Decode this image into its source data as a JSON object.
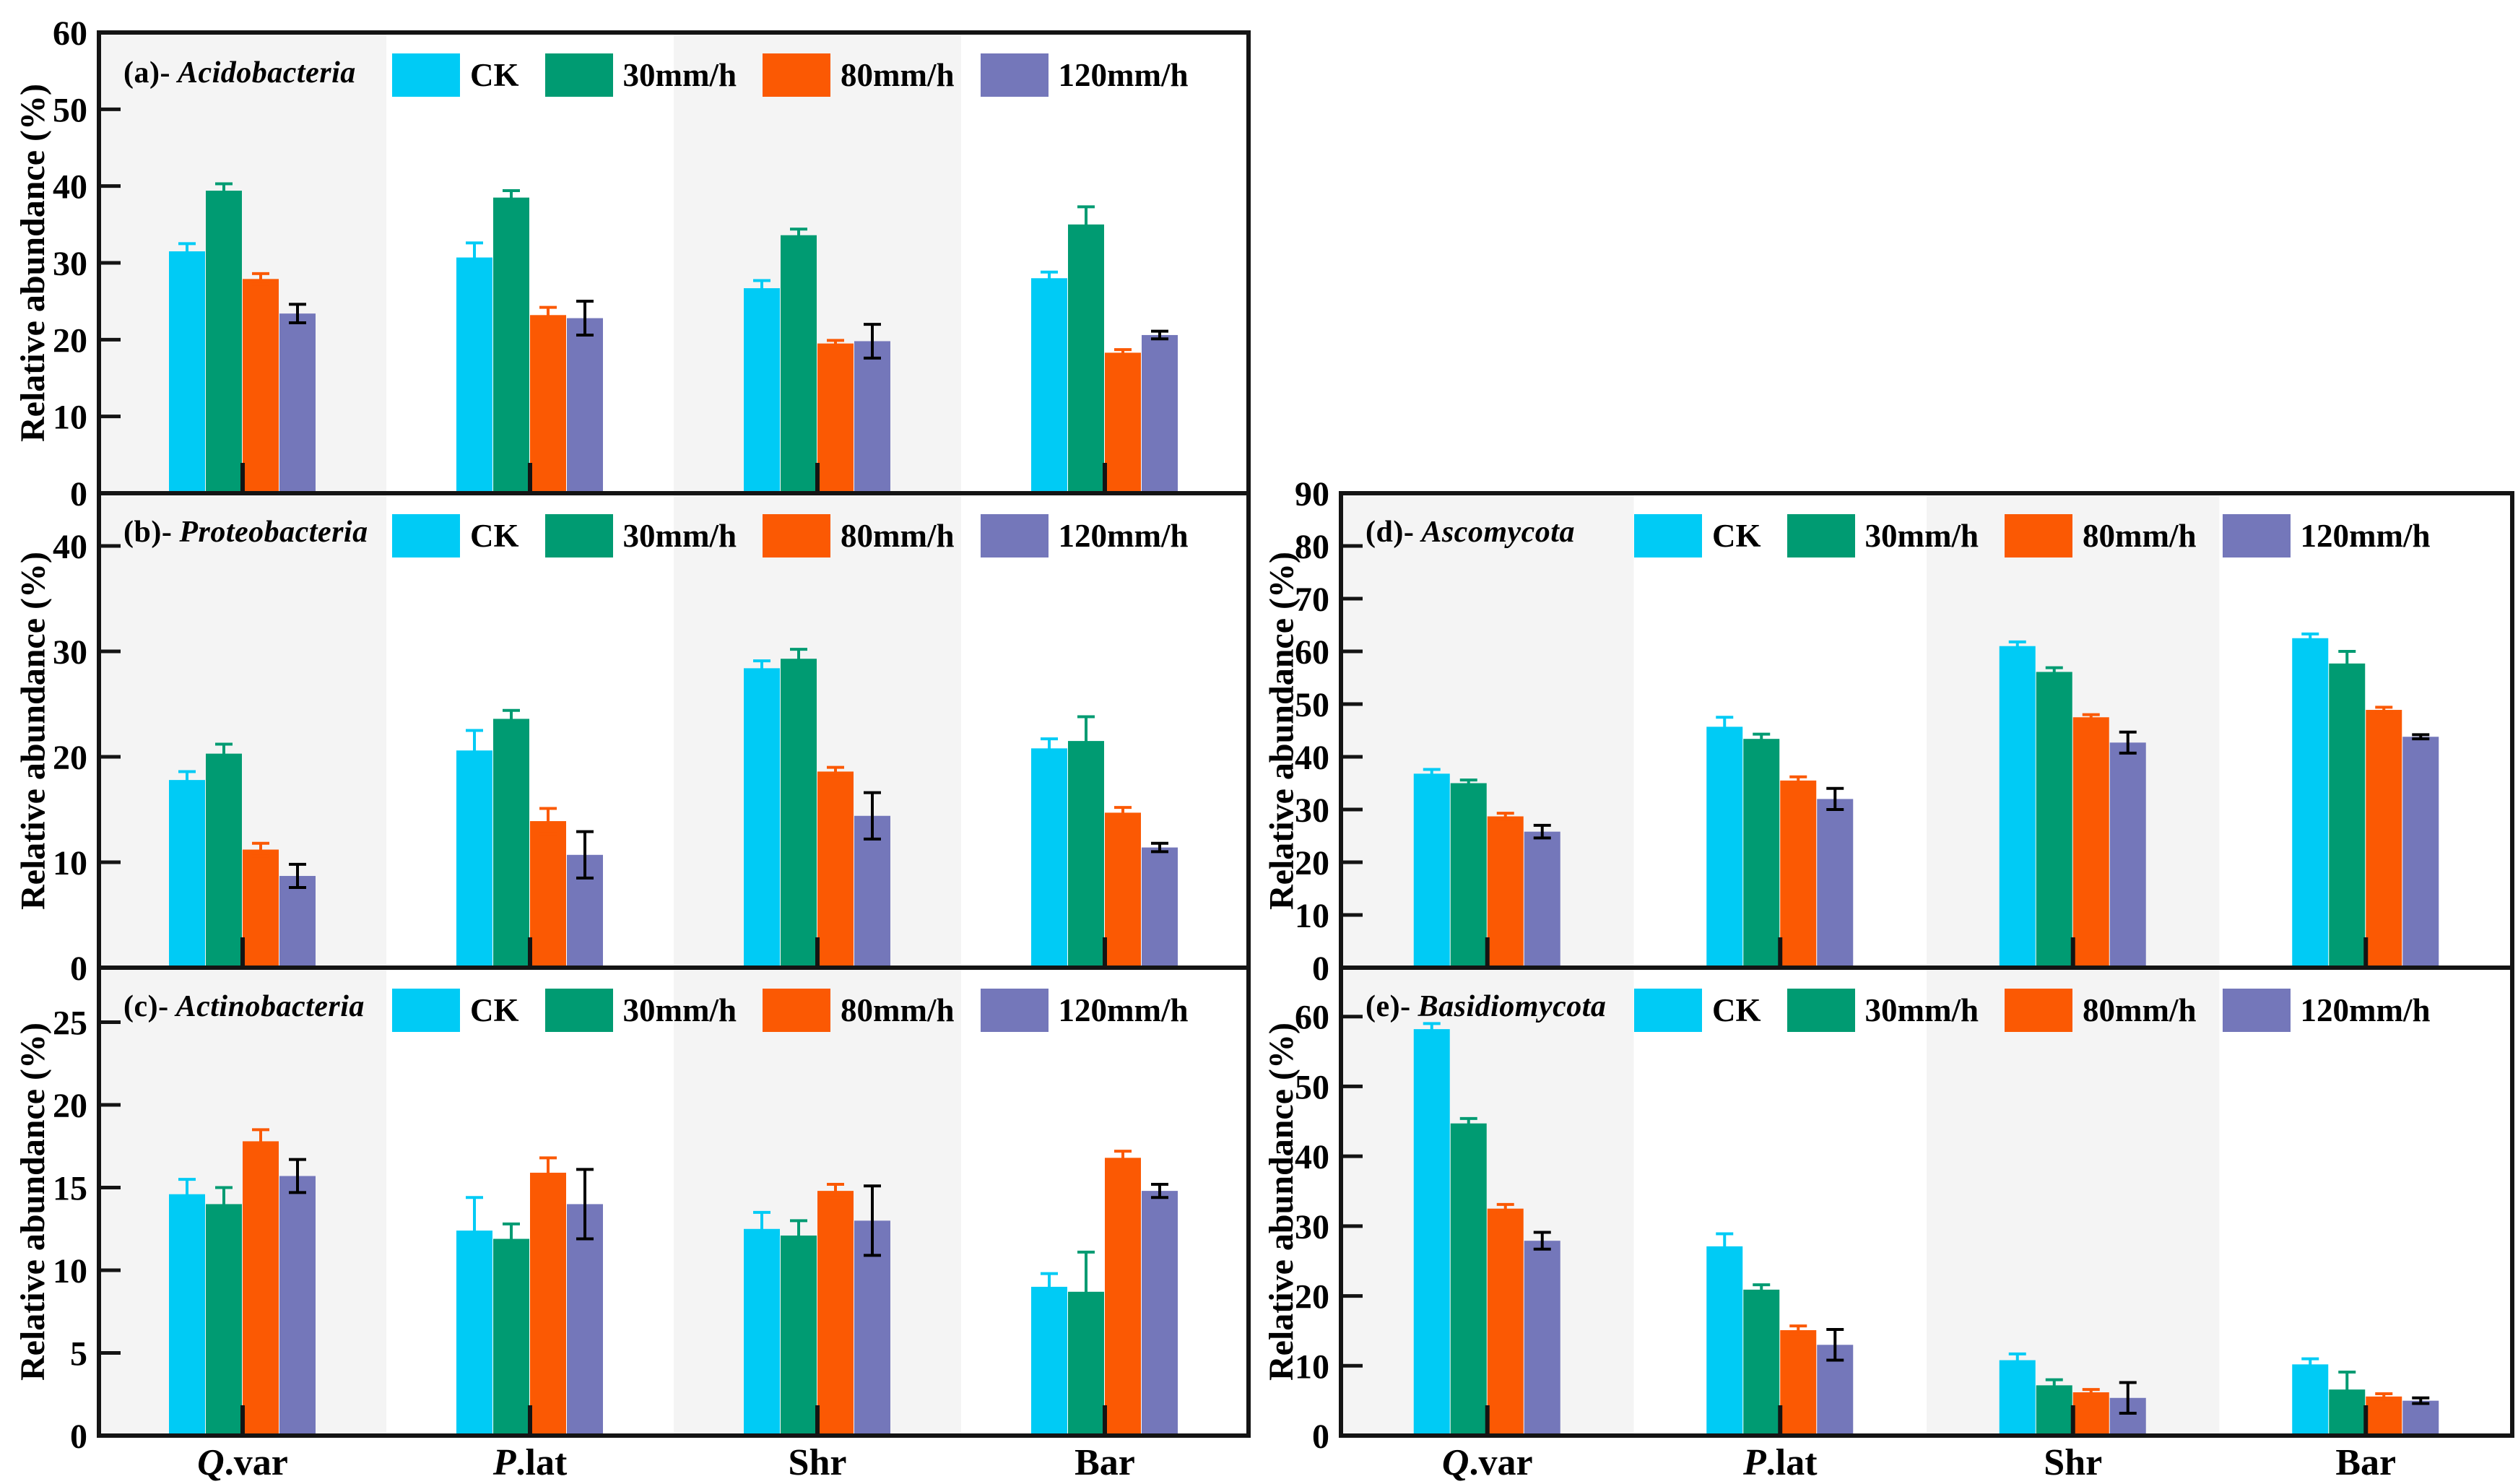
{
  "figure": {
    "ylabel": "Relative abundance (%)",
    "categories": [
      {
        "italic": "Q",
        "text": ".var"
      },
      {
        "italic": "P",
        "text": ".lat"
      },
      {
        "italic": "",
        "text": "Shr"
      },
      {
        "italic": "",
        "text": "Bar"
      }
    ],
    "series": [
      {
        "name": "CK",
        "color": "#00CBF5",
        "error_color": "#00CBF5"
      },
      {
        "name": "30mm/h",
        "color": "#009B72",
        "error_color": "#009B72"
      },
      {
        "name": "80mm/h",
        "color": "#FB5903",
        "error_color": "#FB5903"
      },
      {
        "name": "120mm/h",
        "color": "#7477BA",
        "error_color": "#000000"
      }
    ],
    "band_colors": [
      "#F4F4F4",
      "#FFFFFF"
    ],
    "axis_color": "#141414"
  },
  "chart_data": [
    {
      "type": "bar",
      "panel": "a",
      "panel_label": {
        "prefix": "(a)-",
        "name": "Acidobacteria"
      },
      "ylim": [
        0,
        60
      ],
      "yticks": [
        0,
        10,
        20,
        30,
        40,
        50,
        60
      ],
      "legend_position": "top-inside",
      "grid": false,
      "series": [
        {
          "name": "CK",
          "values": [
            31.5,
            30.7,
            26.7,
            28.0
          ],
          "errors": [
            1.0,
            1.9,
            1.0,
            0.8
          ]
        },
        {
          "name": "30mm/h",
          "values": [
            39.4,
            38.5,
            33.6,
            35.0
          ],
          "errors": [
            0.9,
            0.9,
            0.8,
            2.3
          ]
        },
        {
          "name": "80mm/h",
          "values": [
            27.9,
            23.2,
            19.5,
            18.3
          ],
          "errors": [
            0.7,
            1.0,
            0.4,
            0.4
          ]
        },
        {
          "name": "120mm/h",
          "values": [
            23.4,
            22.8,
            19.8,
            20.6
          ],
          "errors": [
            1.2,
            2.2,
            2.2,
            0.5
          ]
        }
      ]
    },
    {
      "type": "bar",
      "panel": "b",
      "panel_label": {
        "prefix": "(b)-",
        "name": "Proteobacteria"
      },
      "ylim": [
        0,
        45
      ],
      "yticks": [
        0,
        10,
        20,
        30,
        40
      ],
      "legend_position": "top-inside",
      "grid": false,
      "series": [
        {
          "name": "CK",
          "values": [
            17.8,
            20.6,
            28.4,
            20.8
          ],
          "errors": [
            0.8,
            1.9,
            0.7,
            0.9
          ]
        },
        {
          "name": "30mm/h",
          "values": [
            20.3,
            23.6,
            29.3,
            21.5
          ],
          "errors": [
            0.9,
            0.8,
            0.9,
            2.3
          ]
        },
        {
          "name": "80mm/h",
          "values": [
            11.2,
            13.9,
            18.6,
            14.7
          ],
          "errors": [
            0.6,
            1.2,
            0.4,
            0.5
          ]
        },
        {
          "name": "120mm/h",
          "values": [
            8.7,
            10.7,
            14.4,
            11.4
          ],
          "errors": [
            1.1,
            2.2,
            2.2,
            0.4
          ]
        }
      ]
    },
    {
      "type": "bar",
      "panel": "c",
      "panel_label": {
        "prefix": "(c)-",
        "name": "Actinobacteria"
      },
      "ylim": [
        0,
        28.3
      ],
      "yticks": [
        0,
        5,
        10,
        15,
        20,
        25
      ],
      "legend_position": "top-inside",
      "grid": false,
      "series": [
        {
          "name": "CK",
          "values": [
            14.6,
            12.4,
            12.5,
            9.0
          ],
          "errors": [
            0.9,
            2.0,
            1.0,
            0.8
          ]
        },
        {
          "name": "30mm/h",
          "values": [
            14.0,
            11.9,
            12.1,
            8.7
          ],
          "errors": [
            1.0,
            0.9,
            0.9,
            2.4
          ]
        },
        {
          "name": "80mm/h",
          "values": [
            17.8,
            15.9,
            14.8,
            16.8
          ],
          "errors": [
            0.7,
            0.9,
            0.4,
            0.4
          ]
        },
        {
          "name": "120mm/h",
          "values": [
            15.7,
            14.0,
            13.0,
            14.8
          ],
          "errors": [
            1.0,
            2.1,
            2.1,
            0.4
          ]
        }
      ]
    },
    {
      "type": "bar",
      "panel": "d",
      "panel_label": {
        "prefix": "(d)-",
        "name": "Ascomycota"
      },
      "ylim": [
        0,
        90
      ],
      "yticks": [
        0,
        10,
        20,
        30,
        40,
        50,
        60,
        70,
        80,
        90
      ],
      "legend_position": "top-inside",
      "grid": false,
      "series": [
        {
          "name": "CK",
          "values": [
            36.8,
            45.7,
            61.0,
            62.5
          ],
          "errors": [
            0.8,
            1.8,
            0.8,
            0.8
          ]
        },
        {
          "name": "30mm/h",
          "values": [
            35.0,
            43.4,
            56.1,
            57.7
          ],
          "errors": [
            0.6,
            0.9,
            0.8,
            2.3
          ]
        },
        {
          "name": "80mm/h",
          "values": [
            28.7,
            35.5,
            47.5,
            48.9
          ],
          "errors": [
            0.6,
            0.7,
            0.5,
            0.5
          ]
        },
        {
          "name": "120mm/h",
          "values": [
            25.8,
            32.0,
            42.7,
            43.8
          ],
          "errors": [
            1.2,
            2.0,
            2.0,
            0.4
          ]
        }
      ]
    },
    {
      "type": "bar",
      "panel": "e",
      "panel_label": {
        "prefix": "(e)-",
        "name": "Basidiomycota"
      },
      "ylim": [
        0,
        67
      ],
      "yticks": [
        0,
        10,
        20,
        30,
        40,
        50,
        60
      ],
      "legend_position": "top-inside",
      "grid": false,
      "series": [
        {
          "name": "CK",
          "values": [
            58.2,
            27.1,
            10.8,
            10.2
          ],
          "errors": [
            0.8,
            1.8,
            0.9,
            0.8
          ]
        },
        {
          "name": "30mm/h",
          "values": [
            44.7,
            20.9,
            7.2,
            6.6
          ],
          "errors": [
            0.7,
            0.7,
            0.8,
            2.5
          ]
        },
        {
          "name": "80mm/h",
          "values": [
            32.5,
            15.1,
            6.2,
            5.6
          ],
          "errors": [
            0.6,
            0.6,
            0.4,
            0.4
          ]
        },
        {
          "name": "120mm/h",
          "values": [
            27.9,
            13.0,
            5.4,
            5.0
          ],
          "errors": [
            1.2,
            2.2,
            2.2,
            0.4
          ]
        }
      ]
    }
  ]
}
